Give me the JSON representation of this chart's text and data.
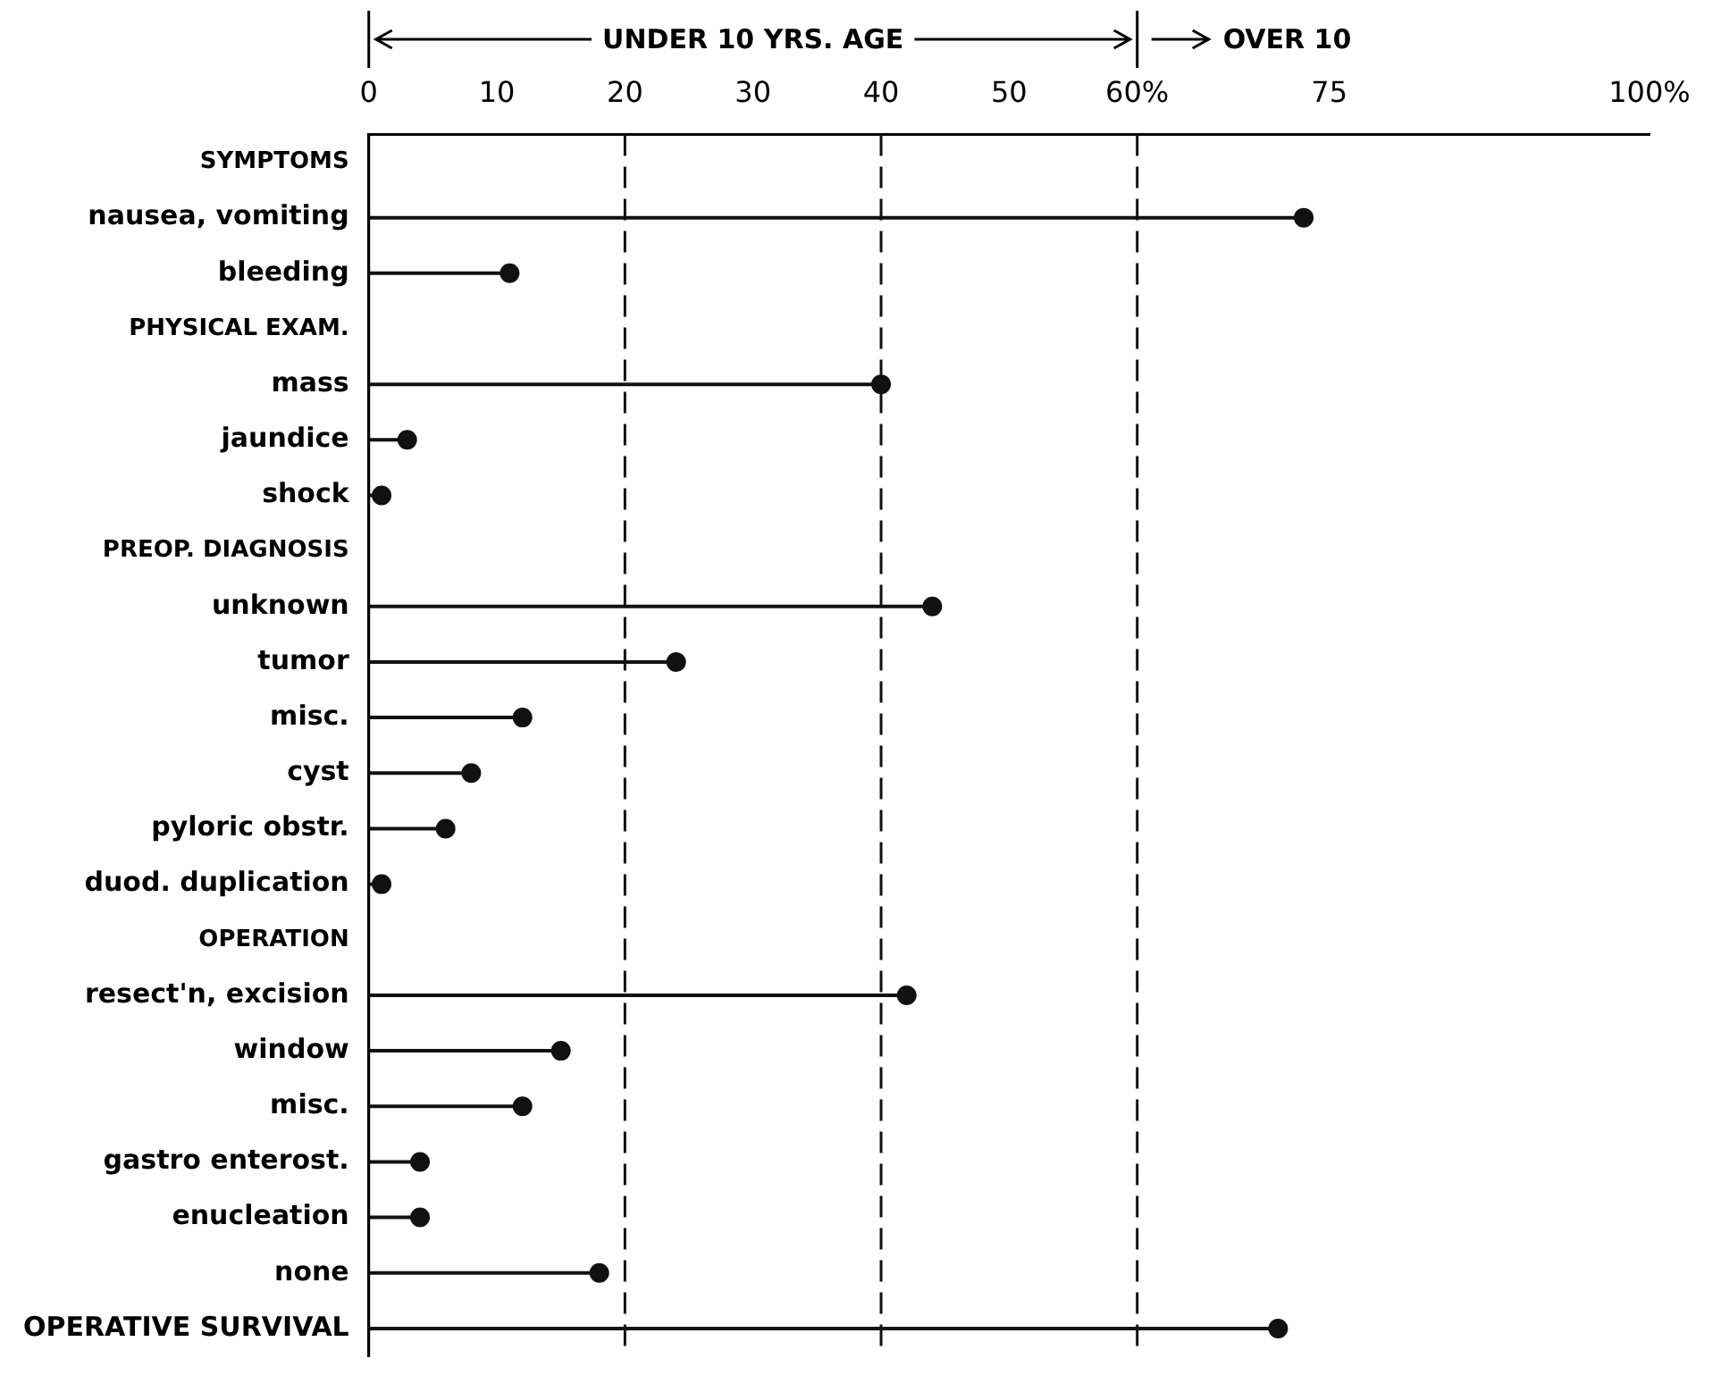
{
  "chart_data": {
    "type": "lollipop",
    "orientation": "horizontal",
    "categories": [
      "SYMPTOMS",
      "nausea, vomiting",
      "bleeding",
      "PHYSICAL EXAM.",
      "mass",
      "jaundice",
      "shock",
      "PREOP. DIAGNOSIS",
      "unknown",
      "tumor",
      "misc.",
      "cyst",
      "pyloric obstr.",
      "duod. duplication",
      "OPERATION",
      "resect'n, excision",
      "window",
      "misc.",
      "gastro enterost.",
      "enucleation",
      "none",
      "OPERATIVE SURVIVAL"
    ],
    "values": [
      null,
      73,
      11,
      null,
      40,
      3,
      1,
      null,
      44,
      24,
      12,
      8,
      6,
      1,
      null,
      42,
      15,
      12,
      4,
      4,
      18,
      71
    ],
    "color": "#111111",
    "xlim": [
      0,
      100
    ],
    "xticks": [
      0,
      10,
      20,
      30,
      40,
      50,
      {
        "value": 60,
        "label": "60%"
      },
      75,
      {
        "value": 100,
        "label": "100%"
      }
    ],
    "ref_lines": [
      {
        "axis": "x",
        "value": 20,
        "line_style": "dashed",
        "color": "#111111"
      },
      {
        "axis": "x",
        "value": 40,
        "line_style": "dashed",
        "color": "#111111"
      },
      {
        "axis": "x",
        "value": 60,
        "line_style": "dashed",
        "color": "#111111"
      }
    ],
    "annotations": [
      "UNDER 10 YRS. AGE",
      "OVER 10"
    ],
    "marker": "circle",
    "grid": false,
    "legend": false
  }
}
